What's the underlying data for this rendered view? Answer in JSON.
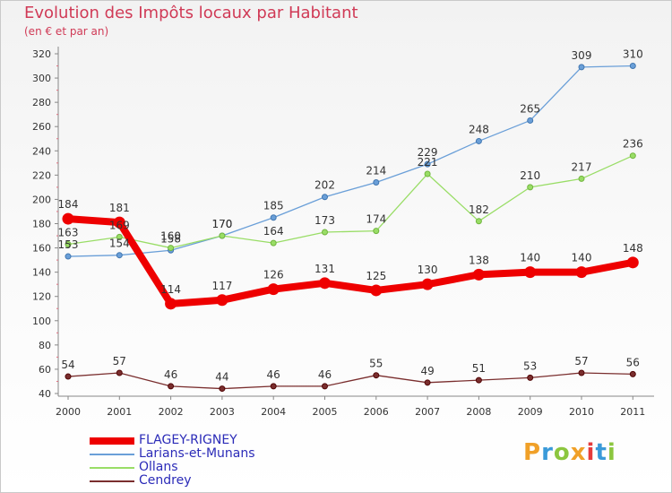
{
  "header": {
    "title": "Evolution des Impôts locaux par Habitant",
    "subtitle": "(en € et par an)"
  },
  "branding": {
    "logo_text": "Proxiti",
    "logo_colors": [
      "#f0a028",
      "#3a9ad9",
      "#8cc63f",
      "#f0a028",
      "#e53b3b",
      "#3a9ad9",
      "#8cc63f"
    ]
  },
  "chart_data": {
    "type": "line",
    "title": "Evolution des Impôts locaux par Habitant",
    "subtitle": "(en € et par an)",
    "x": [
      "2000",
      "2001",
      "2002",
      "2003",
      "2004",
      "2005",
      "2006",
      "2007",
      "2008",
      "2009",
      "2010",
      "2011"
    ],
    "ylim": [
      40,
      320
    ],
    "yticks": [
      "40",
      "60",
      "80",
      "100",
      "120",
      "140",
      "160",
      "180",
      "200",
      "220",
      "240",
      "260",
      "280",
      "300",
      "320"
    ],
    "grid": false,
    "legend_position": "bottom-left",
    "series": [
      {
        "name": "FLAGEY-RIGNEY",
        "color": "#ee0000",
        "values": [
          184,
          181,
          114,
          117,
          126,
          131,
          125,
          130,
          138,
          140,
          140,
          148
        ],
        "labels": [
          "184",
          "181",
          "114",
          "117",
          "126",
          "131",
          "125",
          "130",
          "138",
          "140",
          "140",
          "148"
        ]
      },
      {
        "name": "Larians-et-Munans",
        "color": "#6a9fd8",
        "values": [
          153,
          154,
          158,
          170,
          185,
          202,
          214,
          229,
          248,
          265,
          309,
          310
        ],
        "labels": [
          "153",
          "154",
          "158",
          "170",
          "185",
          "202",
          "214",
          "229",
          "248",
          "265",
          "309",
          "310"
        ]
      },
      {
        "name": "Ollans",
        "color": "#99dd66",
        "values": [
          163,
          169,
          160,
          170,
          164,
          173,
          174,
          221,
          182,
          210,
          217,
          236
        ],
        "labels": [
          "163",
          "169",
          "160",
          "170",
          "164",
          "173",
          "174",
          "221",
          "182",
          "210",
          "217",
          "236"
        ]
      },
      {
        "name": "Cendrey",
        "color": "#7a2e2e",
        "values": [
          54,
          57,
          46,
          44,
          46,
          46,
          55,
          49,
          51,
          53,
          57,
          56
        ],
        "labels": [
          "54",
          "57",
          "46",
          "44",
          "46",
          "46",
          "55",
          "49",
          "51",
          "53",
          "57",
          "56"
        ]
      }
    ]
  }
}
